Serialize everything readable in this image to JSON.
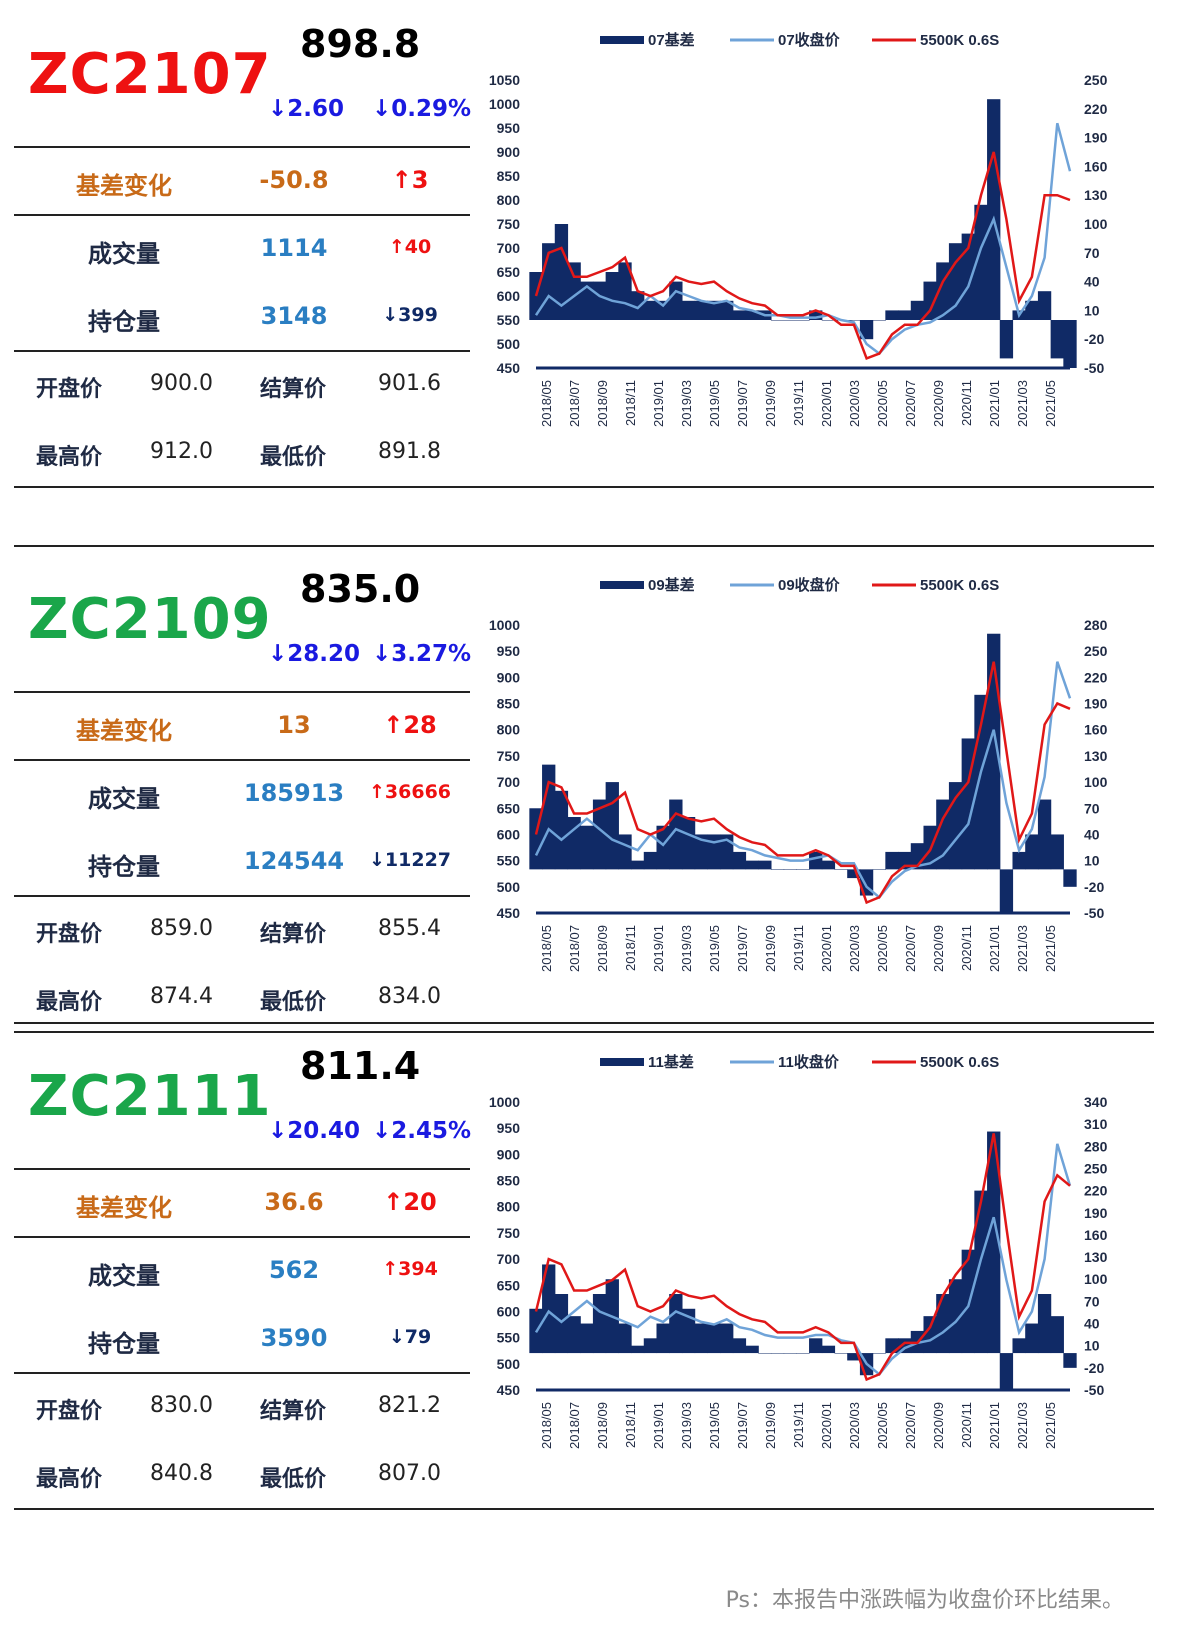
{
  "colors": {
    "red": "#ee1111",
    "green": "#1aa64a",
    "orange": "#c86a18",
    "blue": "#2a7ec2",
    "navy": "#102a66",
    "light": "#6fa3d8",
    "line_red": "#e01818",
    "down": "#1a1ae0"
  },
  "footer_note": "Ps：本报告中涨跌幅为收盘价环比结果。",
  "contracts": [
    {
      "code": "ZC2107",
      "code_color": "red",
      "price": "898.8",
      "chg_abs": "↓2.60",
      "chg_pct": "↓0.29%",
      "basis_label": "基差变化",
      "basis_val": "-50.8",
      "basis_chg": "↑3",
      "volume_label": "成交量",
      "volume_val": "1114",
      "volume_chg": "↑40",
      "oi_label": "持仓量",
      "oi_val": "3148",
      "oi_chg": "↓399",
      "open_label": "开盘价",
      "open_val": "900.0",
      "settle_label": "结算价",
      "settle_val": "901.6",
      "high_label": "最高价",
      "high_val": "912.0",
      "low_label": "最低价",
      "low_val": "891.8"
    },
    {
      "code": "ZC2109",
      "code_color": "green",
      "price": "835.0",
      "chg_abs": "↓28.20",
      "chg_pct": "↓3.27%",
      "basis_label": "基差变化",
      "basis_val": "13",
      "basis_chg": "↑28",
      "volume_label": "成交量",
      "volume_val": "185913",
      "volume_chg": "↑36666",
      "oi_label": "持仓量",
      "oi_val": "124544",
      "oi_chg": "↓11227",
      "open_label": "开盘价",
      "open_val": "859.0",
      "settle_label": "结算价",
      "settle_val": "855.4",
      "high_label": "最高价",
      "high_val": "874.4",
      "low_label": "最低价",
      "low_val": "834.0"
    },
    {
      "code": "ZC2111",
      "code_color": "green",
      "price": "811.4",
      "chg_abs": "↓20.40",
      "chg_pct": "↓2.45%",
      "basis_label": "基差变化",
      "basis_val": "36.6",
      "basis_chg": "↑20",
      "volume_label": "成交量",
      "volume_val": "562",
      "volume_chg": "↑394",
      "oi_label": "持仓量",
      "oi_val": "3590",
      "oi_chg": "↓79",
      "open_label": "开盘价",
      "open_val": "830.0",
      "settle_label": "结算价",
      "settle_val": "821.2",
      "high_label": "最高价",
      "high_val": "840.8",
      "low_label": "最低价",
      "low_val": "807.0"
    }
  ],
  "chart_data": [
    {
      "type": "line",
      "legend": [
        "07基差",
        "07收盘价",
        "5500K 0.6S"
      ],
      "x_ticks": [
        "2018/05",
        "2018/07",
        "2018/09",
        "2018/11",
        "2019/01",
        "2019/03",
        "2019/05",
        "2019/07",
        "2019/09",
        "2019/11",
        "2020/01",
        "2020/03",
        "2020/05",
        "2020/07",
        "2020/09",
        "2020/11",
        "2021/01",
        "2021/03",
        "2021/05"
      ],
      "y_left_ticks": [
        "1050",
        "1000",
        "950",
        "900",
        "850",
        "800",
        "750",
        "700",
        "650",
        "600",
        "550",
        "500",
        "450"
      ],
      "y_right_ticks": [
        "250",
        "220",
        "190",
        "160",
        "130",
        "100",
        "70",
        "40",
        "10",
        "-20",
        "-50"
      ],
      "y_left_range": [
        450,
        1050
      ],
      "y_right_range": [
        -50,
        250
      ],
      "x_months": [
        0,
        1,
        2,
        3,
        4,
        5,
        6,
        7,
        8,
        9,
        10,
        11,
        12,
        13,
        14,
        15,
        16,
        17,
        18,
        19,
        20,
        21,
        22,
        23,
        24,
        25,
        26,
        27,
        28,
        29,
        30,
        31,
        32,
        33,
        34,
        35,
        36,
        37,
        38,
        39,
        40,
        41,
        42
      ],
      "spot": [
        600,
        690,
        700,
        640,
        640,
        650,
        660,
        680,
        610,
        600,
        610,
        640,
        630,
        625,
        630,
        610,
        595,
        585,
        580,
        560,
        560,
        560,
        570,
        560,
        540,
        540,
        470,
        480,
        520,
        540,
        540,
        570,
        630,
        670,
        700,
        810,
        900,
        760,
        590,
        640,
        810,
        810,
        800
      ],
      "close": [
        560,
        600,
        580,
        600,
        620,
        600,
        590,
        585,
        575,
        600,
        580,
        610,
        600,
        590,
        585,
        590,
        575,
        570,
        560,
        560,
        555,
        555,
        555,
        560,
        550,
        545,
        500,
        480,
        510,
        530,
        540,
        545,
        560,
        580,
        620,
        700,
        760,
        660,
        560,
        600,
        680,
        960,
        860
      ],
      "basis": [
        50,
        80,
        100,
        60,
        40,
        40,
        50,
        60,
        30,
        20,
        20,
        40,
        20,
        20,
        20,
        20,
        10,
        10,
        10,
        0,
        0,
        0,
        10,
        0,
        0,
        0,
        -20,
        0,
        10,
        10,
        20,
        40,
        60,
        80,
        90,
        120,
        230,
        -40,
        10,
        20,
        30,
        -40,
        -50
      ]
    },
    {
      "type": "line",
      "legend": [
        "09基差",
        "09收盘价",
        "5500K 0.6S"
      ],
      "x_ticks": [
        "2018/05",
        "2018/07",
        "2018/09",
        "2018/11",
        "2019/01",
        "2019/03",
        "2019/05",
        "2019/07",
        "2019/09",
        "2019/11",
        "2020/01",
        "2020/03",
        "2020/05",
        "2020/07",
        "2020/09",
        "2020/11",
        "2021/01",
        "2021/03",
        "2021/05"
      ],
      "y_left_ticks": [
        "1000",
        "950",
        "900",
        "850",
        "800",
        "750",
        "700",
        "650",
        "600",
        "550",
        "500",
        "450"
      ],
      "y_right_ticks": [
        "280",
        "250",
        "220",
        "190",
        "160",
        "130",
        "100",
        "70",
        "40",
        "10",
        "-20",
        "-50"
      ],
      "y_left_range": [
        450,
        1000
      ],
      "y_right_range": [
        -50,
        280
      ],
      "x_months": [
        0,
        1,
        2,
        3,
        4,
        5,
        6,
        7,
        8,
        9,
        10,
        11,
        12,
        13,
        14,
        15,
        16,
        17,
        18,
        19,
        20,
        21,
        22,
        23,
        24,
        25,
        26,
        27,
        28,
        29,
        30,
        31,
        32,
        33,
        34,
        35,
        36,
        37,
        38,
        39,
        40,
        41,
        42
      ],
      "spot": [
        600,
        700,
        690,
        640,
        640,
        650,
        660,
        680,
        610,
        600,
        610,
        640,
        630,
        625,
        630,
        610,
        595,
        585,
        580,
        560,
        560,
        560,
        570,
        560,
        540,
        540,
        470,
        480,
        520,
        540,
        540,
        570,
        630,
        670,
        700,
        810,
        930,
        760,
        590,
        640,
        810,
        850,
        840
      ],
      "close": [
        560,
        610,
        590,
        610,
        630,
        610,
        590,
        580,
        570,
        600,
        580,
        610,
        600,
        590,
        585,
        590,
        575,
        570,
        560,
        555,
        550,
        550,
        555,
        560,
        545,
        545,
        500,
        480,
        510,
        530,
        540,
        545,
        560,
        590,
        620,
        720,
        800,
        660,
        570,
        610,
        710,
        930,
        860
      ],
      "basis": [
        70,
        120,
        90,
        60,
        50,
        80,
        100,
        40,
        10,
        20,
        50,
        80,
        60,
        40,
        40,
        40,
        20,
        10,
        10,
        0,
        0,
        0,
        20,
        10,
        0,
        -10,
        -30,
        0,
        20,
        20,
        30,
        50,
        80,
        100,
        150,
        200,
        270,
        -50,
        20,
        40,
        80,
        40,
        -20
      ]
    },
    {
      "type": "line",
      "legend": [
        "11基差",
        "11收盘价",
        "5500K 0.6S"
      ],
      "x_ticks": [
        "2018/05",
        "2018/07",
        "2018/09",
        "2018/11",
        "2019/01",
        "2019/03",
        "2019/05",
        "2019/07",
        "2019/09",
        "2019/11",
        "2020/01",
        "2020/03",
        "2020/05",
        "2020/07",
        "2020/09",
        "2020/11",
        "2021/01",
        "2021/03",
        "2021/05"
      ],
      "y_left_ticks": [
        "1000",
        "950",
        "900",
        "850",
        "800",
        "750",
        "700",
        "650",
        "600",
        "550",
        "500",
        "450"
      ],
      "y_right_ticks": [
        "340",
        "310",
        "280",
        "250",
        "220",
        "190",
        "160",
        "130",
        "100",
        "70",
        "40",
        "10",
        "-20",
        "-50"
      ],
      "y_left_range": [
        450,
        1000
      ],
      "y_right_range": [
        -50,
        340
      ],
      "x_months": [
        0,
        1,
        2,
        3,
        4,
        5,
        6,
        7,
        8,
        9,
        10,
        11,
        12,
        13,
        14,
        15,
        16,
        17,
        18,
        19,
        20,
        21,
        22,
        23,
        24,
        25,
        26,
        27,
        28,
        29,
        30,
        31,
        32,
        33,
        34,
        35,
        36,
        37,
        38,
        39,
        40,
        41,
        42
      ],
      "spot": [
        600,
        700,
        690,
        640,
        640,
        650,
        660,
        680,
        610,
        600,
        610,
        640,
        630,
        625,
        630,
        610,
        595,
        585,
        580,
        560,
        560,
        560,
        570,
        560,
        540,
        540,
        470,
        480,
        520,
        540,
        540,
        570,
        630,
        670,
        700,
        810,
        940,
        760,
        590,
        640,
        810,
        860,
        840
      ],
      "close": [
        560,
        600,
        580,
        600,
        620,
        600,
        590,
        580,
        570,
        590,
        580,
        600,
        590,
        580,
        575,
        585,
        570,
        565,
        555,
        550,
        550,
        550,
        555,
        555,
        545,
        540,
        500,
        480,
        510,
        530,
        540,
        545,
        560,
        580,
        610,
        700,
        780,
        660,
        560,
        600,
        700,
        920,
        840
      ],
      "basis": [
        60,
        120,
        80,
        50,
        40,
        80,
        100,
        40,
        10,
        20,
        40,
        80,
        60,
        40,
        40,
        40,
        20,
        10,
        0,
        0,
        0,
        0,
        20,
        10,
        0,
        -10,
        -30,
        0,
        20,
        20,
        30,
        50,
        80,
        100,
        140,
        220,
        300,
        -50,
        20,
        40,
        80,
        50,
        -20
      ]
    }
  ]
}
